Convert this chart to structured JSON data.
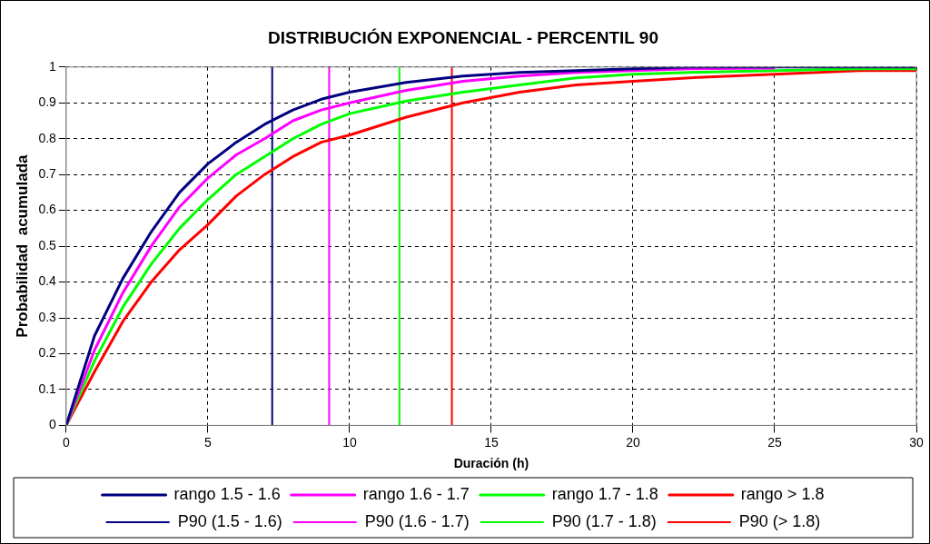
{
  "chart_data": {
    "type": "line",
    "title": "DISTRIBUCIÓN EXPONENCIAL - PERCENTIL 90",
    "xlabel": "Duración (h)",
    "ylabel": "Probabilidad  acumulada",
    "x": [
      0,
      1,
      2,
      3,
      4,
      5,
      6,
      7,
      8,
      9,
      10,
      12,
      14,
      16,
      18,
      20,
      22,
      25,
      28,
      30
    ],
    "series": [
      {
        "name": "rango 1.5 - 1.6",
        "color": "#000080",
        "values": [
          0,
          0.25,
          0.41,
          0.54,
          0.65,
          0.73,
          0.79,
          0.84,
          0.88,
          0.91,
          0.93,
          0.957,
          0.975,
          0.985,
          0.99,
          0.995,
          1,
          1,
          1,
          1
        ]
      },
      {
        "name": "rango 1.6 - 1.7",
        "color": "#ff00ff",
        "values": [
          0,
          0.21,
          0.37,
          0.5,
          0.61,
          0.69,
          0.755,
          0.8,
          0.85,
          0.88,
          0.9,
          0.935,
          0.96,
          0.975,
          0.985,
          0.99,
          0.995,
          0.997,
          null,
          null
        ]
      },
      {
        "name": "rango 1.7 - 1.8",
        "color": "#00ff00",
        "values": [
          0,
          0.18,
          0.33,
          0.45,
          0.55,
          0.63,
          0.7,
          0.75,
          0.8,
          0.84,
          0.87,
          0.905,
          0.93,
          0.95,
          0.97,
          0.98,
          0.985,
          0.99,
          0.995,
          0.995
        ]
      },
      {
        "name": "rango > 1.8",
        "color": "#ff0000",
        "values": [
          0,
          0.15,
          0.29,
          0.4,
          0.49,
          0.56,
          0.64,
          0.7,
          0.75,
          0.79,
          0.81,
          0.86,
          0.9,
          0.93,
          0.95,
          0.96,
          0.97,
          0.98,
          0.99,
          0.99
        ]
      }
    ],
    "ref_lines": [
      {
        "axis": "x",
        "value": 7.27,
        "label": "P90 (1.5 - 1.6)",
        "color": "#000080"
      },
      {
        "axis": "x",
        "value": 9.28,
        "label": "P90 (1.6 - 1.7)",
        "color": "#ff00ff"
      },
      {
        "axis": "x",
        "value": 11.76,
        "label": "P90 (1.7 - 1.8)",
        "color": "#00ff00"
      },
      {
        "axis": "x",
        "value": 13.61,
        "label": "P90 (> 1.8)",
        "color": "#ff0000"
      }
    ],
    "xlim": [
      0,
      30
    ],
    "xticks": [
      0,
      5,
      10,
      15,
      20,
      25,
      30
    ],
    "ylim": [
      0,
      1
    ],
    "yticks": [
      0,
      0.1,
      0.2,
      0.3,
      0.4,
      0.5,
      0.6,
      0.7,
      0.8,
      0.9,
      1
    ],
    "grid": true,
    "legend": "bottom",
    "marker": "none",
    "line_style": "solid"
  }
}
